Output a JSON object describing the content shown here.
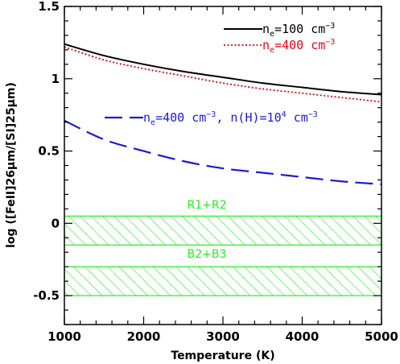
{
  "chart_data": {
    "type": "line",
    "xlabel": "Temperature (K)",
    "ylabel": "log ([FeII]26μm/[SI]25μm)",
    "xlim": [
      1000,
      5000
    ],
    "ylim": [
      -0.7,
      1.5
    ],
    "x_ticks": [
      "1000",
      "2000",
      "3000",
      "4000",
      "5000"
    ],
    "y_ticks": [
      "-0.5",
      "0",
      "0.5",
      "1",
      "1.5"
    ],
    "series": [
      {
        "name": "ne=100 cm-3",
        "label_parts": {
          "base": "n",
          "sub": "e",
          "rest": "=100 cm",
          "sup": "−3"
        },
        "color": "#000000",
        "style": "solid",
        "x": [
          1000,
          1500,
          2000,
          2500,
          3000,
          3500,
          4000,
          4500,
          5000
        ],
        "y": [
          1.24,
          1.16,
          1.1,
          1.05,
          1.01,
          0.97,
          0.94,
          0.91,
          0.89
        ]
      },
      {
        "name": "ne=400 cm-3",
        "label_parts": {
          "base": "n",
          "sub": "e",
          "rest": "=400 cm",
          "sup": "−3"
        },
        "color": "#e8000b",
        "style": "dotted",
        "x": [
          1000,
          1500,
          2000,
          2500,
          3000,
          3500,
          4000,
          4500,
          5000
        ],
        "y": [
          1.22,
          1.13,
          1.07,
          1.02,
          0.97,
          0.93,
          0.9,
          0.87,
          0.84
        ]
      },
      {
        "name": "ne=400 cm-3, n(H)=10^4 cm-3",
        "label_parts": {
          "base": "n",
          "sub": "e",
          "rest": "=400 cm",
          "sup": "−3",
          "rest2": ", n(H)=10",
          "sup2": "4",
          "rest3": " cm",
          "sup3": "−3"
        },
        "color": "#1a1ad6",
        "style": "dashed",
        "x": [
          1000,
          1500,
          2000,
          2500,
          3000,
          3500,
          4000,
          4500,
          5000
        ],
        "y": [
          0.71,
          0.58,
          0.5,
          0.43,
          0.38,
          0.35,
          0.32,
          0.29,
          0.27
        ]
      }
    ],
    "bands": [
      {
        "label": "R1+R2",
        "y_low": -0.15,
        "y_high": 0.05,
        "color": "#22ee22"
      },
      {
        "label": "B2+B3",
        "y_low": -0.5,
        "y_high": -0.3,
        "color": "#22ee22"
      }
    ],
    "grid": false,
    "legend_position": "top-right"
  }
}
